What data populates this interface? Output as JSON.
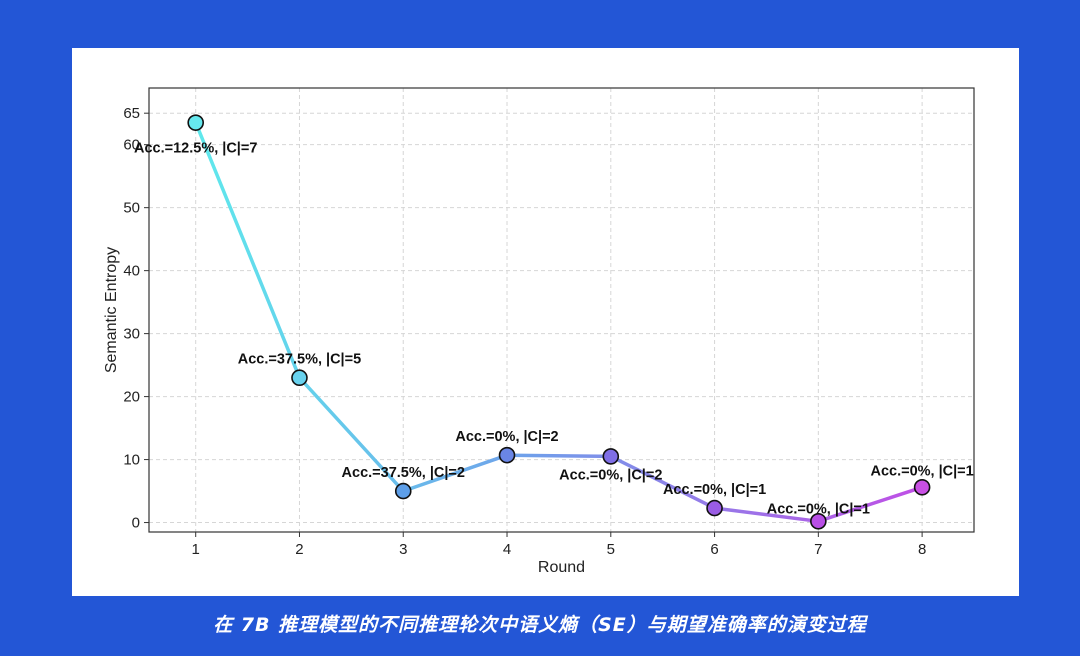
{
  "caption": "在 7B 推理模型的不同推理轮次中语义熵（SE）与期望准确率的演变过程",
  "chart_data": {
    "type": "line",
    "title": "",
    "xlabel": "Round",
    "ylabel": "Semantic Entropy",
    "x": [
      1,
      2,
      3,
      4,
      5,
      6,
      7,
      8
    ],
    "xticks": [
      "1",
      "2",
      "3",
      "4",
      "5",
      "6",
      "7",
      "8"
    ],
    "yticks": [
      "0",
      "10",
      "20",
      "30",
      "40",
      "50",
      "60",
      "65"
    ],
    "ytick_values": [
      0,
      10,
      20,
      30,
      40,
      50,
      60,
      65
    ],
    "ylim": [
      -1.5,
      69
    ],
    "xlim": [
      0.55,
      8.5
    ],
    "grid": true,
    "series": [
      {
        "values": [
          63.5,
          23.0,
          5.0,
          10.7,
          10.5,
          2.3,
          0.2,
          5.6
        ],
        "annotations": [
          "Acc.=12.5%, |C|=7",
          "Acc.=37.5%, |C|=5",
          "Acc.=37.5%, |C|=2",
          "Acc.=0%, |C|=2",
          "Acc.=0%, |C|=2",
          "Acc.=0%, |C|=1",
          "Acc.=0%, |C|=1",
          "Acc.=0%, |C|=1"
        ]
      }
    ],
    "colors": {
      "line_start": "#5fe8ec",
      "line_end": "#c04ee6",
      "markers": [
        "#66e8ee",
        "#68d2ee",
        "#5d9ee8",
        "#6a86e6",
        "#7f6ee6",
        "#9a5ce4",
        "#b94fe6",
        "#c950e4"
      ],
      "marker_edge": "#111111",
      "grid": "#d6d6d6",
      "frame": "#333333"
    }
  }
}
